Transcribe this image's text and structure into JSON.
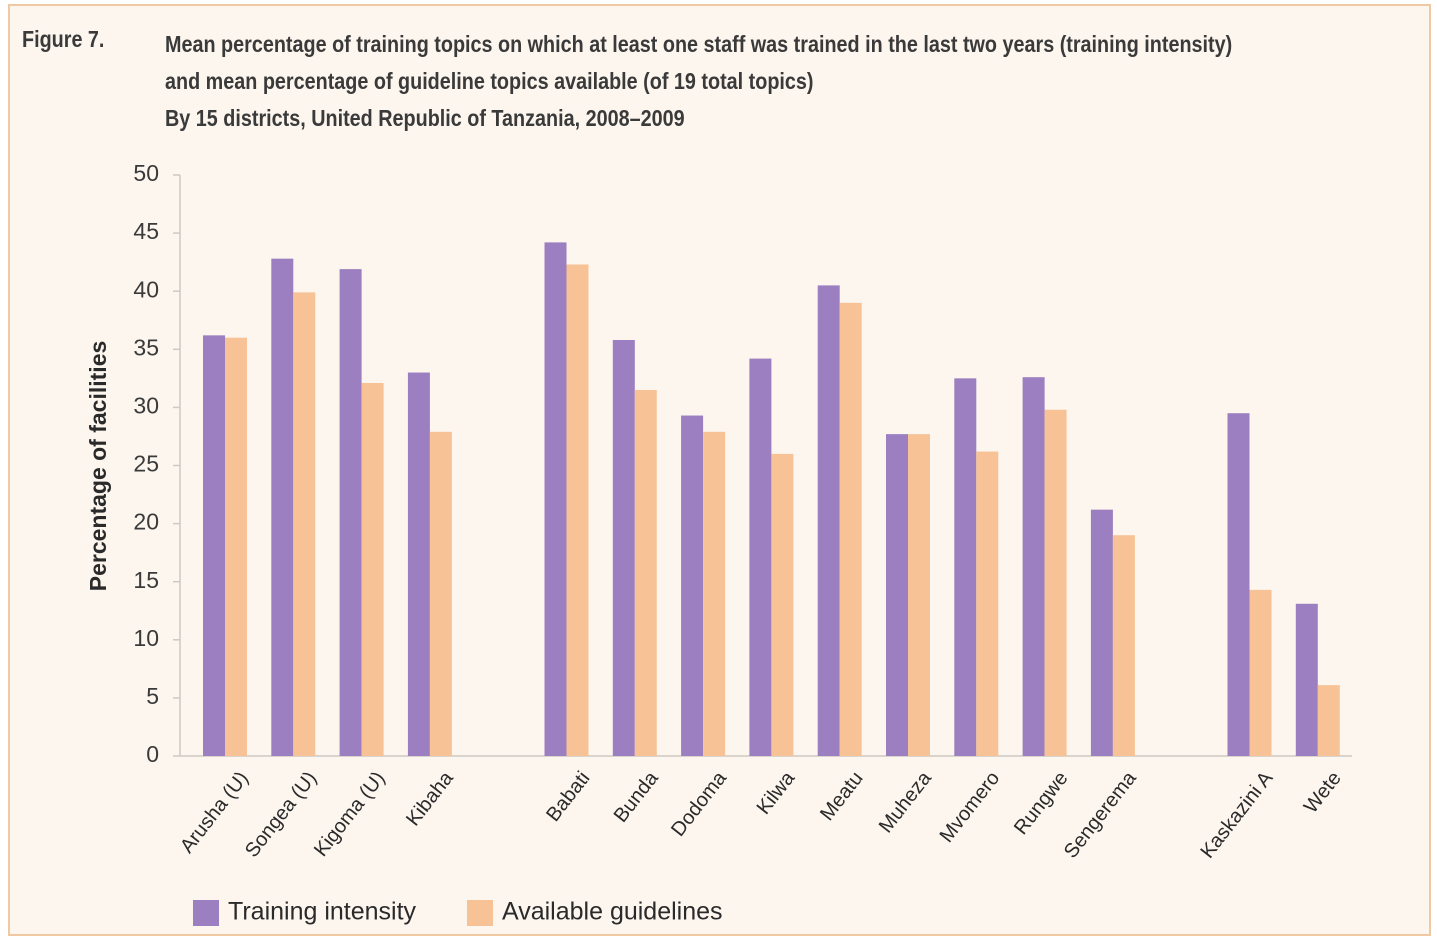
{
  "figure": {
    "label": "Figure 7.",
    "title_lines": [
      "Mean percentage of training topics on which at least one staff was trained in the last two years (training intensity)",
      "and mean percentage of guideline topics available (of 19 total topics)",
      "By 15 districts, United Republic of Tanzania, 2008–2009"
    ]
  },
  "chart_data": {
    "type": "bar",
    "ylabel": "Percentage of facilities",
    "xlabel": "",
    "ylim": [
      0,
      50
    ],
    "yticks": [
      0,
      5,
      10,
      15,
      20,
      25,
      30,
      35,
      40,
      45,
      50
    ],
    "grid": false,
    "legend_position": "bottom-left",
    "category_groups": [
      [
        "Arusha (U)",
        "Songea (U)",
        "Kigoma (U)",
        "Kibaha"
      ],
      [
        "Babati",
        "Bunda",
        "Dodoma",
        "Kilwa",
        "Meatu",
        "Muheza",
        "Mvomero",
        "Rungwe",
        "Sengerema"
      ],
      [
        "Kaskazini A",
        "Wete"
      ]
    ],
    "categories": [
      "Arusha (U)",
      "Songea (U)",
      "Kigoma (U)",
      "Kibaha",
      "Babati",
      "Bunda",
      "Dodoma",
      "Kilwa",
      "Meatu",
      "Muheza",
      "Mvomero",
      "Rungwe",
      "Sengerema",
      "Kaskazini A",
      "Wete"
    ],
    "series": [
      {
        "name": "Training intensity",
        "color": "#9b7fc0",
        "values": [
          36.2,
          42.8,
          41.9,
          33.0,
          44.2,
          35.8,
          29.3,
          34.2,
          40.5,
          27.7,
          32.5,
          32.6,
          21.2,
          29.5,
          13.1
        ]
      },
      {
        "name": "Available guidelines",
        "color": "#f7c396",
        "values": [
          36.0,
          39.9,
          32.1,
          27.9,
          42.3,
          31.5,
          27.9,
          26.0,
          39.0,
          27.7,
          26.2,
          29.8,
          19.0,
          14.3,
          6.1
        ]
      }
    ]
  }
}
